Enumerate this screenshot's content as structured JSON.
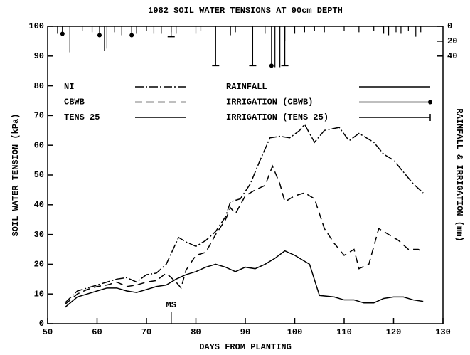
{
  "chart_data": {
    "type": "line",
    "title": "1982 SOIL WATER TENSIONS AT 90cm DEPTH",
    "xlabel": "DAYS FROM PLANTING",
    "ylabel": "SOIL WATER TENSION (kPa)",
    "y2label": "RAINFALL & IRRIGATION (mm)",
    "xlim": [
      50,
      130
    ],
    "xticks": [
      50,
      60,
      70,
      80,
      90,
      100,
      110,
      120,
      130
    ],
    "ylim": [
      0,
      100
    ],
    "yticks": [
      0,
      10,
      20,
      30,
      40,
      50,
      60,
      70,
      80,
      90,
      100
    ],
    "y2lim": [
      0,
      400
    ],
    "y2ticks": [
      0,
      20,
      40
    ],
    "y2_inverted": true,
    "color": "#000000",
    "series": [
      {
        "name": "NI",
        "dash": "dashdot",
        "x": [
          53.5,
          56,
          58,
          60,
          62,
          64,
          66,
          68,
          70,
          72,
          74,
          76.5,
          78,
          80,
          82,
          84,
          86,
          87,
          89,
          91,
          93,
          95,
          97,
          99,
          101,
          102,
          104,
          106,
          109,
          111,
          113,
          116,
          118,
          120,
          122,
          124,
          126
        ],
        "values": [
          7,
          11,
          12,
          13,
          14,
          15,
          15.5,
          14,
          16.5,
          17,
          20,
          29,
          27.5,
          26,
          28,
          31,
          36,
          41,
          42,
          47,
          55,
          62.5,
          63,
          62.5,
          65,
          67,
          61,
          65,
          66,
          61.5,
          64,
          61,
          57,
          55,
          51,
          47,
          44
        ]
      },
      {
        "name": "CBWB",
        "dash": "dashed",
        "x": [
          53.5,
          56,
          58,
          60,
          62,
          64,
          66,
          68,
          70,
          72,
          74,
          76,
          77,
          78,
          80,
          82,
          84,
          86,
          87,
          88,
          90,
          92,
          94,
          95.5,
          97,
          98,
          100,
          102,
          104,
          106,
          108,
          110,
          112,
          113,
          115,
          117,
          119,
          121,
          123,
          125,
          126
        ],
        "values": [
          6.5,
          10,
          11.5,
          12.5,
          13,
          14,
          12.5,
          13,
          14,
          14.5,
          17,
          14,
          12,
          18,
          23,
          24,
          30,
          35,
          39,
          37,
          43,
          45,
          46.5,
          53,
          47,
          41,
          43,
          44,
          42,
          32,
          27,
          23,
          25,
          18.5,
          20,
          32,
          30,
          28,
          25,
          25,
          24
        ]
      },
      {
        "name": "TENS 25",
        "dash": "solid",
        "x": [
          53.5,
          56,
          58,
          60,
          62,
          64,
          66,
          68,
          70,
          72,
          74,
          76,
          78,
          80,
          82,
          84,
          86,
          88,
          90,
          92,
          94,
          96,
          98,
          100,
          102,
          103,
          105,
          108,
          110,
          112,
          114,
          116,
          118,
          120,
          122,
          124,
          126
        ],
        "values": [
          5.5,
          9,
          10,
          11,
          12,
          12,
          11,
          10.5,
          11.5,
          12.5,
          13,
          15,
          16.5,
          17.5,
          19,
          20,
          19,
          17.5,
          19,
          18.5,
          20,
          22,
          24.5,
          23,
          21,
          20,
          9.5,
          9,
          8,
          8,
          7,
          7,
          8.5,
          9,
          9,
          8,
          7.5
        ]
      },
      {
        "name": "RAINFALL",
        "axis": "y2",
        "style": "drop",
        "marker": "none",
        "x": [
          52,
          53,
          54.5,
          57,
          59,
          61.5,
          62,
          63.5,
          65,
          68,
          70,
          71.5,
          73,
          75,
          76,
          80,
          81,
          87,
          88,
          94,
          96,
          97,
          98,
          100,
          102,
          104,
          106,
          110,
          113,
          116,
          118,
          119,
          120.5,
          121.5,
          123,
          124.5,
          125.5
        ],
        "values": [
          10,
          8,
          35,
          6,
          8,
          33,
          30,
          8,
          12,
          10,
          6,
          10,
          10,
          8,
          10,
          10,
          6,
          12,
          8,
          10,
          55,
          55,
          20,
          10,
          8,
          6,
          8,
          6,
          8,
          6,
          10,
          12,
          8,
          10,
          6,
          14,
          8
        ]
      },
      {
        "name": "IRRIGATION (CBWB)",
        "axis": "y2",
        "style": "drop",
        "marker": "circle",
        "x": [
          53,
          60.5,
          67,
          95.3
        ],
        "values": [
          10,
          12,
          12,
          53
        ]
      },
      {
        "name": "IRRIGATION (TENS 25)",
        "axis": "y2",
        "style": "drop",
        "marker": "bar",
        "x": [
          75,
          84,
          91.5,
          98
        ],
        "values": [
          14,
          53,
          53,
          53
        ]
      }
    ],
    "annotations": [
      {
        "text": "MS",
        "x": 75
      }
    ]
  }
}
